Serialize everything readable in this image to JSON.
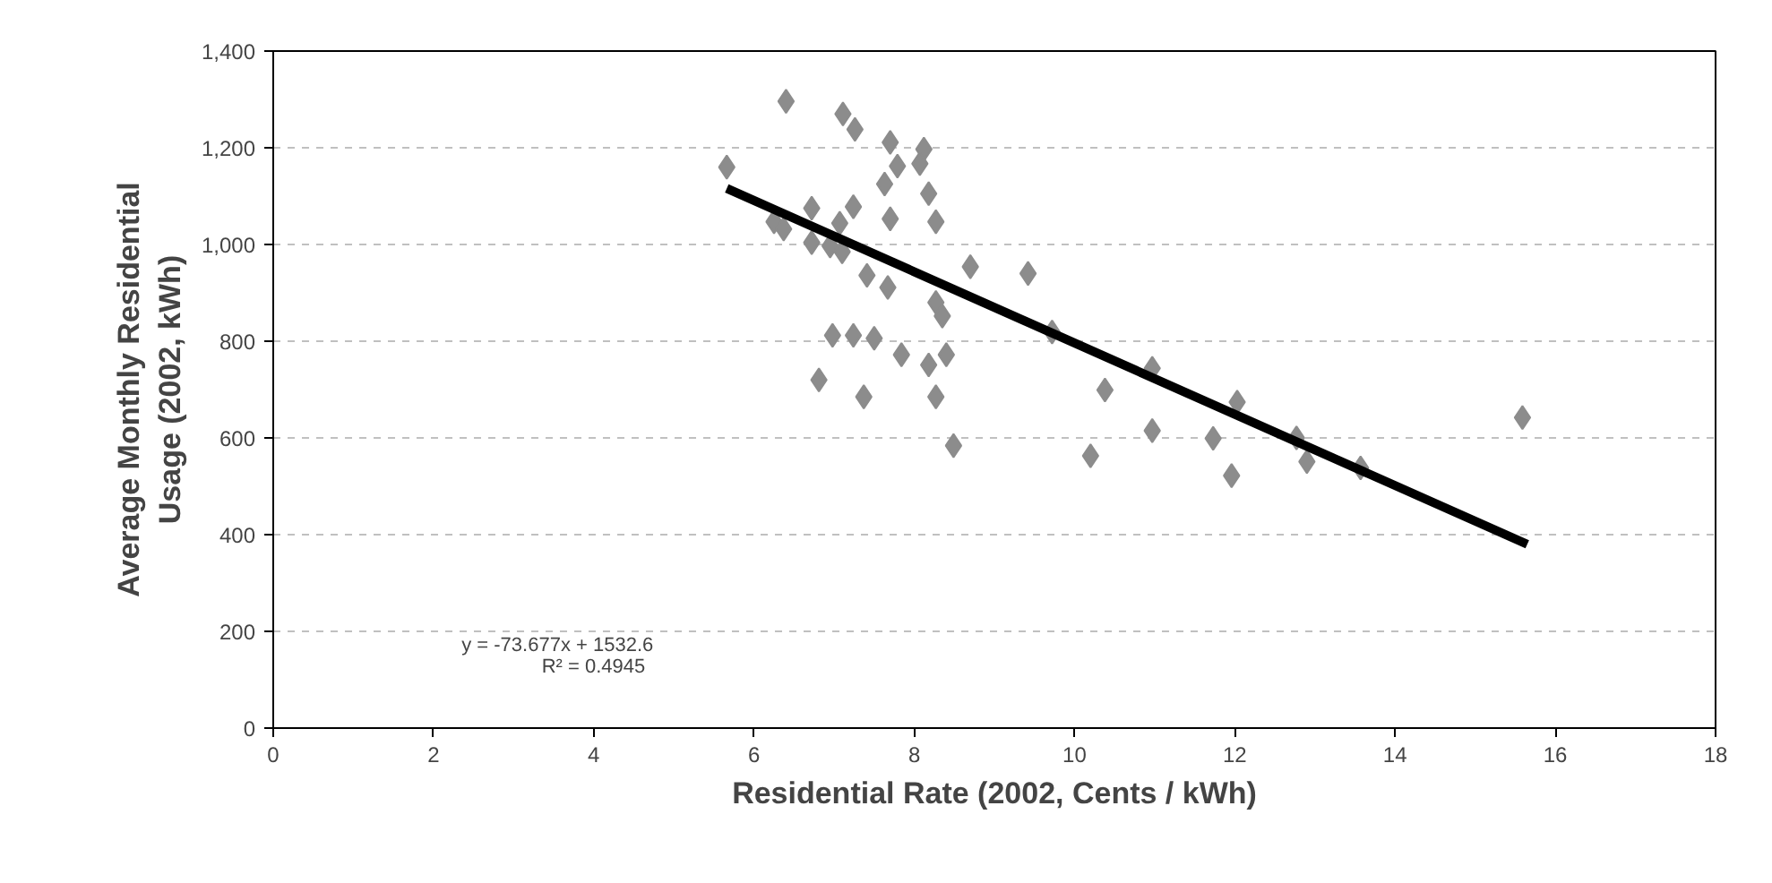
{
  "chart_data": {
    "type": "scatter",
    "xlabel": "Residential Rate (2002, Cents / kWh)",
    "ylabel": "Average Monthly Residential\nUsage (2002, kWh)",
    "xlim": [
      0,
      18
    ],
    "xticks": [
      0,
      2,
      4,
      6,
      8,
      10,
      12,
      14,
      16,
      18
    ],
    "ylim": [
      0,
      1400
    ],
    "yticks": [
      0,
      200,
      400,
      600,
      800,
      {
        "value": 1000,
        "label": "1,000"
      },
      {
        "value": 1200,
        "label": "1,200"
      },
      {
        "value": 1400,
        "label": "1,400"
      }
    ],
    "grid": "y",
    "marker": "diamond",
    "annotations": [
      "y = -73.677x + 1532.6",
      "R² = 0.4945"
    ],
    "series": [
      {
        "color": "#8c8c8c",
        "x": [
          5.66,
          6.25,
          6.37,
          6.72,
          6.72,
          6.95,
          7.07,
          7.1,
          7.24,
          7.11,
          7.26,
          7.7,
          7.79,
          7.63,
          7.7,
          8.12,
          8.07,
          8.18,
          8.27,
          8.7,
          9.42,
          7.41,
          7.67,
          8.27,
          8.35,
          6.98,
          7.24,
          7.5,
          7.84,
          8.18,
          8.4,
          6.81,
          7.37,
          8.27,
          8.49,
          6.4,
          9.72,
          10.38,
          10.97,
          10.2,
          10.97,
          11.73,
          12.03,
          11.96,
          12.77,
          12.9,
          13.57,
          15.59
        ],
        "values": [
          1160,
          1047,
          1032,
          1075,
          1004,
          997,
          1044,
          985,
          1078,
          1270,
          1238,
          1211,
          1162,
          1125,
          1053,
          1197,
          1167,
          1105,
          1047,
          954,
          940,
          936,
          911,
          880,
          852,
          812,
          812,
          806,
          772,
          751,
          772,
          720,
          685,
          685,
          584,
          1296,
          819,
          699,
          744,
          563,
          615,
          599,
          674,
          522,
          600,
          551,
          538,
          642
        ]
      },
      {
        "type": "line",
        "marker": "none",
        "color": "#000000",
        "x": [
          5.66,
          15.65
        ],
        "values": [
          1116,
          380
        ]
      }
    ]
  }
}
